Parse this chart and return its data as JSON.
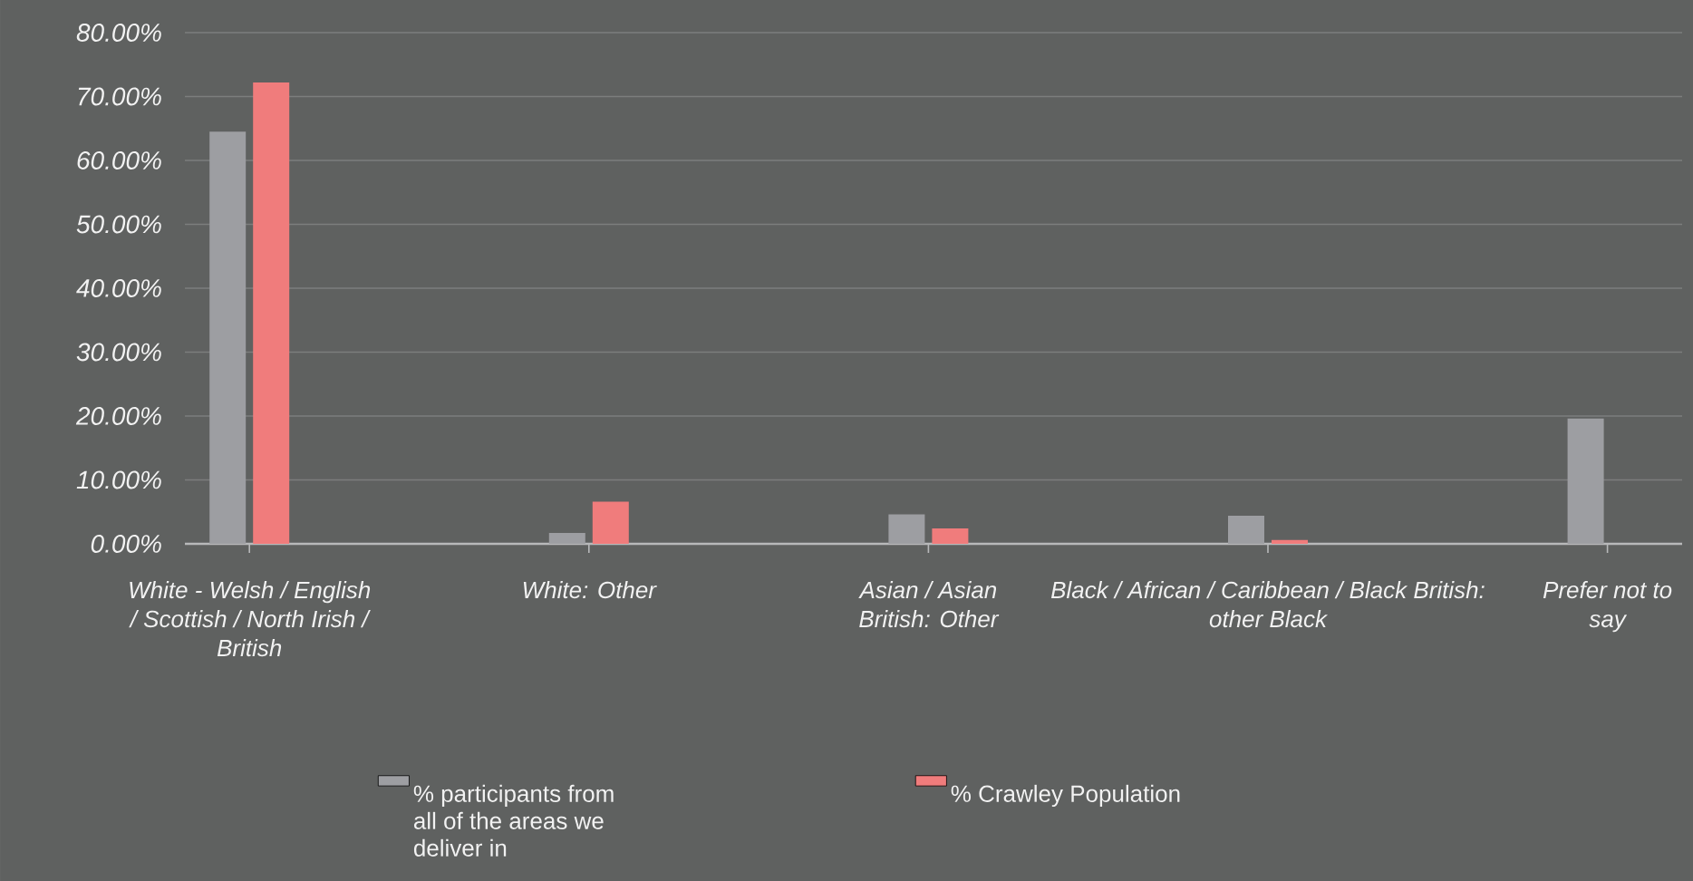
{
  "chart_data": {
    "type": "bar",
    "categories": [
      "White - Welsh / English / Scottish / North Irish / British",
      "White: Other",
      "Asian / Asian British: Other",
      "Black / African / Caribbean / Black British: other Black",
      "Prefer not to say"
    ],
    "series": [
      {
        "name": "% participants from all of the areas we deliver in",
        "color": "#9d9ea2",
        "values": [
          64.5,
          1.7,
          4.6,
          4.4,
          19.6
        ]
      },
      {
        "name": "% Crawley Population",
        "color": "#f07c7c",
        "values": [
          72.2,
          6.6,
          2.4,
          0.6,
          null
        ]
      }
    ],
    "ylim": [
      0,
      80
    ],
    "yticks": [
      {
        "value": 0,
        "label": "0.00%"
      },
      {
        "value": 10,
        "label": "10.00%"
      },
      {
        "value": 20,
        "label": "20.00%"
      },
      {
        "value": 30,
        "label": "30.00%"
      },
      {
        "value": 40,
        "label": "40.00%"
      },
      {
        "value": 50,
        "label": "50.00%"
      },
      {
        "value": 60,
        "label": "60.00%"
      },
      {
        "value": 70,
        "label": "70.00%"
      },
      {
        "value": 80,
        "label": "80.00%"
      }
    ],
    "grid": "y",
    "legend": "bottom"
  }
}
